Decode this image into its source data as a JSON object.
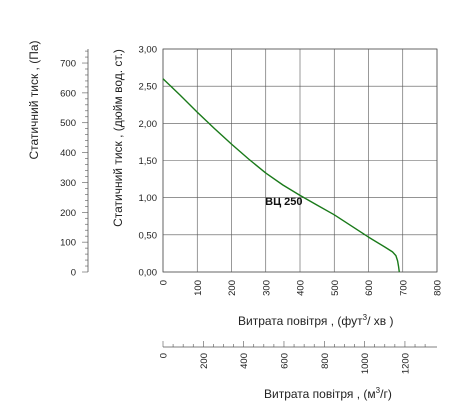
{
  "chart_data": {
    "type": "line",
    "title": "",
    "series": [
      {
        "name": "ВЦ 250",
        "color": "#1a7a1a",
        "x": [
          0,
          50,
          100,
          150,
          200,
          250,
          300,
          350,
          400,
          450,
          500,
          550,
          600,
          650,
          670,
          680,
          685,
          688,
          690
        ],
        "y": [
          2.6,
          2.38,
          2.15,
          1.93,
          1.72,
          1.52,
          1.33,
          1.17,
          1.03,
          0.9,
          0.77,
          0.62,
          0.47,
          0.33,
          0.27,
          0.22,
          0.15,
          0.07,
          0.0
        ]
      }
    ],
    "series_label_position": {
      "x": 415,
      "y": 1.17
    },
    "x_axis_primary": {
      "label_main": "Витрата повітря , (фут",
      "label_sup": "3",
      "label_end": "/  хв )",
      "min": 0,
      "max": 800,
      "ticks": [
        0,
        100,
        200,
        300,
        400,
        500,
        600,
        700,
        800
      ]
    },
    "x_axis_secondary": {
      "label_main": "Витрата повітря , (м",
      "label_sup": "3",
      "label_end": "/г)",
      "min": 0,
      "max": 1359,
      "ticks": [
        0,
        200,
        400,
        600,
        800,
        1000,
        1200
      ]
    },
    "y_axis_primary": {
      "label": "Статичний тиск , (дюйм вод. ст.)",
      "min": 0,
      "max": 3.0,
      "ticks": [
        "0,00",
        "0,50",
        "1,00",
        "1,50",
        "2,00",
        "2,50",
        "3,00"
      ],
      "tick_values": [
        0,
        0.5,
        1.0,
        1.5,
        2.0,
        2.5,
        3.0
      ]
    },
    "y_axis_secondary": {
      "label": "Статичний тиск , (Па)",
      "min": 0,
      "max": 747,
      "ticks": [
        0,
        100,
        200,
        300,
        400,
        500,
        600,
        700
      ]
    },
    "grid": true
  }
}
